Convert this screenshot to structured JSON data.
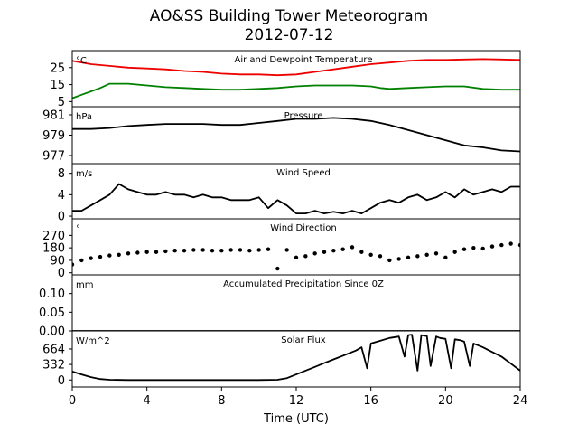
{
  "figure": {
    "title": "AO&SS Building Tower Meteorogram",
    "subtitle": "2012-07-12",
    "xlabel": "Time (UTC)"
  },
  "chart_data": [
    {
      "type": "line",
      "title": "Air and Dewpoint Temperature",
      "unit": "°C",
      "ylim": [
        2,
        35
      ],
      "yticks": [
        "5",
        "15",
        "25"
      ],
      "ytick_values": [
        5,
        15,
        25
      ],
      "xlim": [
        0,
        24
      ],
      "series": [
        {
          "color": "#ee0000",
          "x": [
            0,
            1,
            2,
            3,
            4,
            5,
            6,
            7,
            8,
            9,
            10,
            11,
            12,
            13,
            14,
            15,
            16,
            17,
            18,
            19,
            20,
            21,
            22,
            23,
            24
          ],
          "y": [
            29,
            27,
            26,
            25,
            24.5,
            24,
            23,
            22.5,
            21.5,
            21,
            21,
            20.5,
            21,
            22.5,
            24,
            25.5,
            27,
            28,
            29,
            29.5,
            29.5,
            29.8,
            30,
            29.8,
            29.5
          ]
        },
        {
          "color": "#008000",
          "x": [
            0,
            0.5,
            1,
            1.5,
            2,
            3,
            4,
            5,
            6,
            7,
            8,
            9,
            10,
            11,
            12,
            13,
            14,
            15,
            16,
            16.5,
            17,
            18,
            19,
            20,
            21,
            22,
            23,
            24
          ],
          "y": [
            7,
            9,
            11,
            13,
            15.5,
            15.5,
            14.5,
            13.5,
            13,
            12.5,
            12,
            12,
            12.5,
            13,
            14,
            14.5,
            14.5,
            14.5,
            14,
            13,
            12.5,
            13,
            13.5,
            14,
            14,
            12.5,
            12,
            12
          ]
        }
      ]
    },
    {
      "type": "line",
      "title": "Pressure",
      "unit": "hPa",
      "ylim": [
        976.2,
        981.8
      ],
      "yticks": [
        "977",
        "979",
        "981"
      ],
      "ytick_values": [
        977,
        979,
        981
      ],
      "xlim": [
        0,
        24
      ],
      "series": [
        {
          "color": "#000000",
          "x": [
            0,
            1,
            2,
            3,
            4,
            5,
            6,
            7,
            8,
            9,
            10,
            11,
            12,
            13,
            14,
            15,
            16,
            17,
            18,
            19,
            20,
            21,
            22,
            23,
            24
          ],
          "y": [
            979.6,
            979.6,
            979.7,
            979.9,
            980.0,
            980.1,
            980.1,
            980.1,
            980.0,
            980.0,
            980.2,
            980.4,
            980.6,
            980.6,
            980.7,
            980.6,
            980.4,
            980.0,
            979.5,
            979.0,
            978.5,
            978.0,
            977.8,
            977.5,
            977.4
          ]
        }
      ]
    },
    {
      "type": "line",
      "title": "Wind Speed",
      "unit": "m/s",
      "ylim": [
        -0.5,
        9.8
      ],
      "yticks": [
        "0",
        "4",
        "8"
      ],
      "ytick_values": [
        0,
        4,
        8
      ],
      "xlim": [
        0,
        24
      ],
      "series": [
        {
          "color": "#000000",
          "x": [
            0,
            0.5,
            1,
            1.5,
            2,
            2.5,
            3,
            3.5,
            4,
            4.5,
            5,
            5.5,
            6,
            6.5,
            7,
            7.5,
            8,
            8.5,
            9,
            9.5,
            10,
            10.5,
            11,
            11.5,
            12,
            12.5,
            13,
            13.5,
            14,
            14.5,
            15,
            15.5,
            16,
            16.5,
            17,
            17.5,
            18,
            18.5,
            19,
            19.5,
            20,
            20.5,
            21,
            21.5,
            22,
            22.5,
            23,
            23.5,
            24
          ],
          "y": [
            1,
            1,
            2,
            3,
            4,
            6,
            5,
            4.5,
            4,
            4,
            4.5,
            4,
            4,
            3.5,
            4,
            3.5,
            3.5,
            3,
            3,
            3,
            3.5,
            1.5,
            3,
            2,
            0.5,
            0.5,
            1,
            0.5,
            0.8,
            0.5,
            1,
            0.5,
            1.5,
            2.5,
            3,
            2.5,
            3.5,
            4,
            3,
            3.5,
            4.5,
            3.5,
            5,
            4,
            4.5,
            5,
            4.5,
            5.5,
            5.5
          ]
        }
      ]
    },
    {
      "type": "scatter",
      "title": "Wind Direction",
      "unit": "°",
      "ylim": [
        -15,
        390
      ],
      "yticks": [
        "0",
        "90",
        "180",
        "270"
      ],
      "ytick_values": [
        0,
        90,
        180,
        270
      ],
      "xlim": [
        0,
        24
      ],
      "series": [
        {
          "color": "#000000",
          "x": [
            0,
            0.5,
            1,
            1.5,
            2,
            2.5,
            3,
            3.5,
            4,
            4.5,
            5,
            5.5,
            6,
            6.5,
            7,
            7.5,
            8,
            8.5,
            9,
            9.5,
            10,
            10.5,
            11,
            11.5,
            12,
            12.5,
            13,
            13.5,
            14,
            14.5,
            15,
            15.5,
            16,
            16.5,
            17,
            17.5,
            18,
            18.5,
            19,
            19.5,
            20,
            20.5,
            21,
            21.5,
            22,
            22.5,
            23,
            23.5,
            24
          ],
          "y": [
            60,
            90,
            105,
            115,
            125,
            130,
            140,
            145,
            150,
            150,
            155,
            160,
            160,
            165,
            165,
            160,
            160,
            165,
            165,
            160,
            165,
            170,
            30,
            165,
            110,
            120,
            140,
            150,
            160,
            170,
            185,
            150,
            130,
            120,
            90,
            100,
            110,
            120,
            130,
            140,
            110,
            150,
            170,
            180,
            175,
            190,
            200,
            210,
            200
          ]
        }
      ]
    },
    {
      "type": "line",
      "title": "Accumulated Precipitation Since 0Z",
      "unit": "mm",
      "ylim": [
        0,
        0.15
      ],
      "yticks": [
        "0.00",
        "0.05",
        "0.10"
      ],
      "ytick_values": [
        0,
        0.05,
        0.1
      ],
      "xlim": [
        0,
        24
      ],
      "series": [
        {
          "color": "#000000",
          "x": [
            0,
            24
          ],
          "y": [
            0,
            0
          ]
        }
      ]
    },
    {
      "type": "line",
      "title": "Solar Flux",
      "unit": "W/m^2",
      "ylim": [
        -150,
        1050
      ],
      "yticks": [
        "0",
        "332",
        "664"
      ],
      "ytick_values": [
        0,
        332,
        664
      ],
      "xlim": [
        0,
        24
      ],
      "series": [
        {
          "color": "#000000",
          "x": [
            0,
            0.5,
            1,
            1.5,
            2,
            3,
            4,
            6,
            8,
            10,
            11,
            11.5,
            12,
            12.5,
            13,
            13.5,
            14,
            14.5,
            15,
            15.2,
            15.5,
            15.8,
            16,
            16.5,
            17,
            17.5,
            17.8,
            18,
            18.2,
            18.5,
            18.7,
            19,
            19.2,
            19.5,
            19.7,
            20,
            20.3,
            20.5,
            20.8,
            21,
            21.3,
            21.5,
            22,
            22.5,
            23,
            23.5,
            24
          ],
          "y": [
            180,
            120,
            60,
            20,
            5,
            0,
            0,
            0,
            0,
            0,
            5,
            40,
            120,
            200,
            280,
            360,
            440,
            520,
            600,
            630,
            700,
            250,
            780,
            840,
            900,
            930,
            500,
            960,
            970,
            200,
            960,
            940,
            300,
            930,
            900,
            880,
            250,
            870,
            850,
            820,
            300,
            780,
            700,
            600,
            500,
            350,
            200
          ]
        }
      ]
    }
  ],
  "xaxis": {
    "ticks": [
      "0",
      "4",
      "8",
      "12",
      "16",
      "20",
      "24"
    ],
    "tick_values": [
      0,
      4,
      8,
      12,
      16,
      20,
      24
    ]
  }
}
